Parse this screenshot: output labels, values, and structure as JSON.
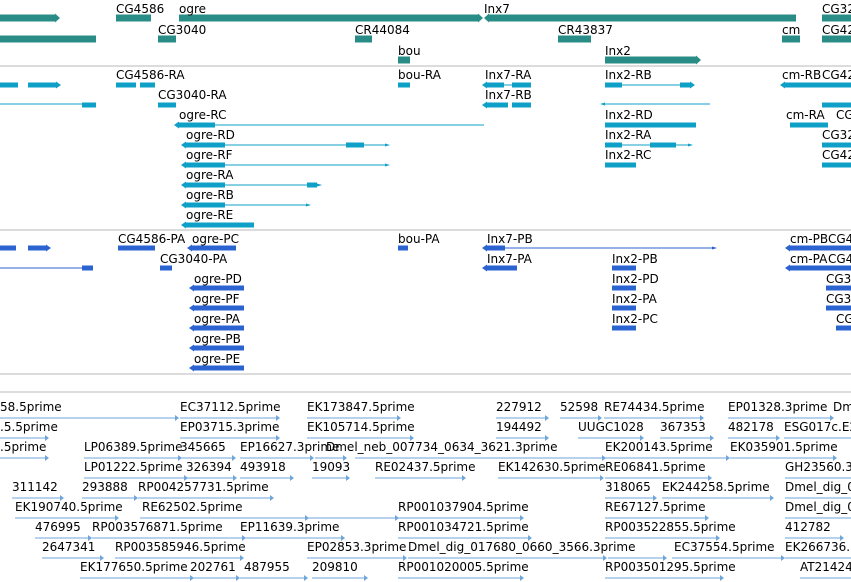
{
  "colors": {
    "gene": "#2a8c86",
    "transcript": "#0fa0c8",
    "protein": "#2b63d1",
    "est": "#6fa6d9",
    "divider": "#b8b8b8",
    "text": "#000000"
  },
  "gene_labels": [
    "CG4586",
    "ogre",
    "Inx7",
    "CG32",
    "CG3040",
    "CR44084",
    "CR43837",
    "cm",
    "CG42",
    "bou",
    "Inx2"
  ],
  "transcript_labels": [
    "CG4586-RA",
    "bou-RA",
    "Inx7-RA",
    "Inx2-RB",
    "cm-RB",
    "CG42",
    "CG3040-RA",
    "Inx7-RB",
    "ogre-RC",
    "Inx2-RD",
    "cm-RA",
    "CG",
    "ogre-RD",
    "Inx2-RA",
    "CG32",
    "ogre-RF",
    "Inx2-RC",
    "CG42",
    "ogre-RA",
    "ogre-RB",
    "ogre-RE"
  ],
  "protein_labels": [
    "CG4586-PA",
    "ogre-PC",
    "bou-PA",
    "Inx7-PB",
    "cm-PB",
    "CG4",
    "CG3040-PA",
    "Inx7-PA",
    "Inx2-PB",
    "cm-PA",
    "CG4",
    "ogre-PD",
    "Inx2-PD",
    "CG3",
    "ogre-PF",
    "Inx2-PA",
    "CG3",
    "ogre-PA",
    "Inx2-PC",
    "CG",
    "ogre-PB",
    "ogre-PE"
  ],
  "est_labels": [
    "58.5prime",
    "EC37112.5prime",
    "EK173847.5prime",
    "227912",
    "52598",
    "RE74434.5prime",
    "EP01328.3prime",
    "Dm",
    ".5.5prime",
    "EP03715.3prime",
    "EK105714.5prime",
    "194492",
    "UUGC1028",
    "367353",
    "482178",
    "ESG017c.E2",
    ".5prime",
    "LP06389.5prime",
    "345665",
    "EP16627.3prime",
    "Dmel_neb_007734_0634_3621.3prime",
    "EK200143.5prime",
    "EK035901.5prime",
    "LP01222.5prime",
    "326394",
    "493918",
    "19093",
    "RE02437.5prime",
    "EK142630.5prime",
    "RE06841.5prime",
    "GH23560.3",
    "311142",
    "293888",
    "RP004257731.5prime",
    "318065",
    "EK244258.5prime",
    "Dmel_dig_0",
    "EK190740.5prime",
    "RE62502.5prime",
    "RP001037904.5prime",
    "RE67127.5prime",
    "Dmel_dig_0",
    "476995",
    "RP003576871.5prime",
    "EP11639.3prime",
    "RP001034721.5prime",
    "RP003522855.5prime",
    "412782",
    "2647341",
    "RP003585946.5prime",
    "EP02853.3prime",
    "Dmel_dig_017680_0660_3566.3prime",
    "EC37554.5prime",
    "EK266736.",
    "EK177650.5prime",
    "202761",
    "487955",
    "209810",
    "RP001020005.5prime",
    "RP003501295.5prime",
    "AT21424"
  ]
}
